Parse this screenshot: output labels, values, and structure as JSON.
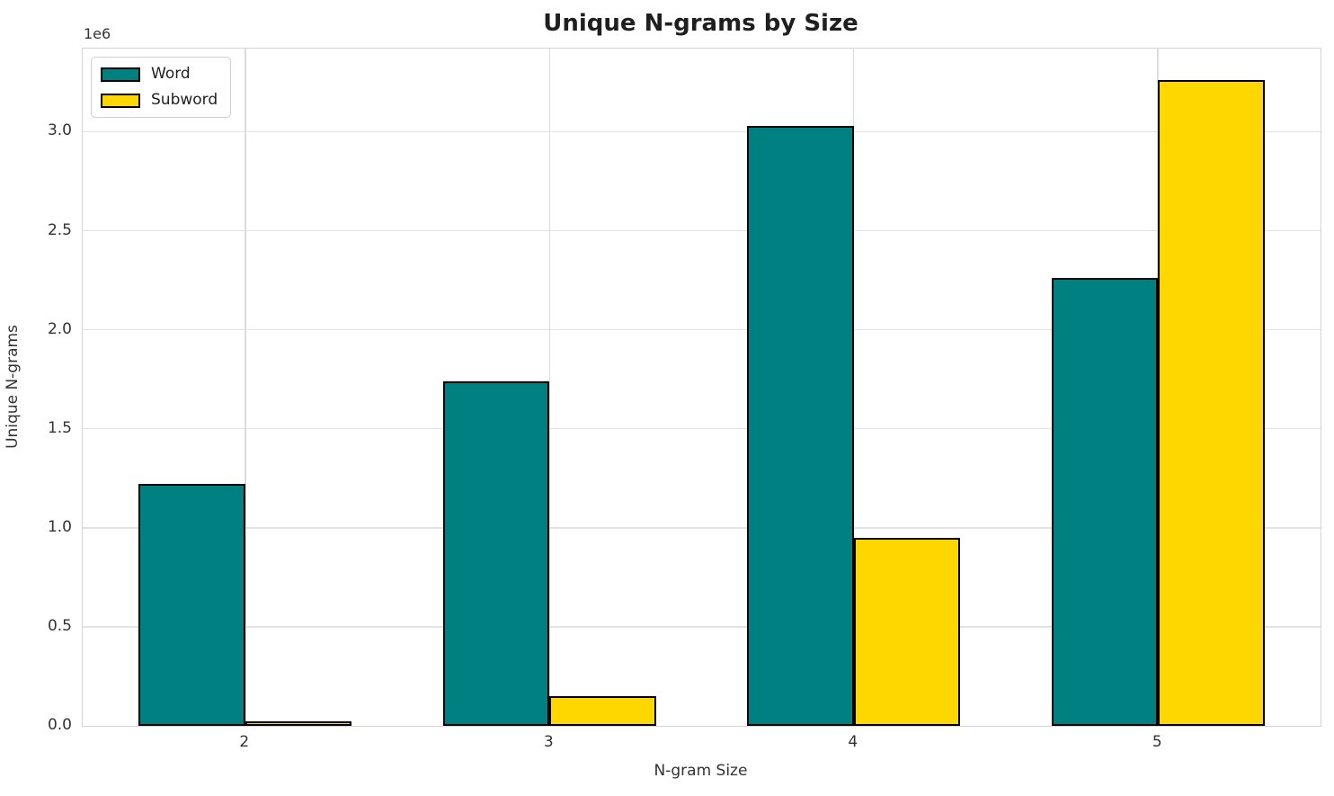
{
  "figure": {
    "title": "Unique N-grams by Size",
    "xlabel": "N-gram Size",
    "ylabel": "Unique N-grams",
    "offset_text": "1e6"
  },
  "chart_data": {
    "type": "bar",
    "title": "Unique N-grams by Size",
    "xlabel": "N-gram Size",
    "ylabel": "Unique N-grams",
    "y_axis_multiplier": "1e6",
    "categories": [
      "2",
      "3",
      "4",
      "5"
    ],
    "x_values": [
      2,
      3,
      4,
      5
    ],
    "series": [
      {
        "name": "Word",
        "color": "#008080",
        "values": [
          1220000,
          1740000,
          3030000,
          2260000
        ]
      },
      {
        "name": "Subword",
        "color": "#FFD700",
        "values": [
          25000,
          150000,
          950000,
          3260000
        ]
      }
    ],
    "bar_width": 0.35,
    "bar_edge_color": "#000000",
    "y_ticks": {
      "values": [
        0,
        500000,
        1000000,
        1500000,
        2000000,
        2500000,
        3000000
      ],
      "labels": [
        "0.0",
        "0.5",
        "1.0",
        "1.5",
        "2.0",
        "2.5",
        "3.0"
      ]
    },
    "ylim": [
      0,
      3420000
    ],
    "xlim": [
      1.466,
      5.534
    ],
    "grid": true,
    "legend_position": "upper left",
    "colors": {
      "grid_h": "#e3e3e3",
      "grid_v": "#dcdcdc",
      "spine": "#d4d4d4",
      "text": "#333333",
      "title": "#1f1f1f",
      "background": "#ffffff"
    }
  }
}
